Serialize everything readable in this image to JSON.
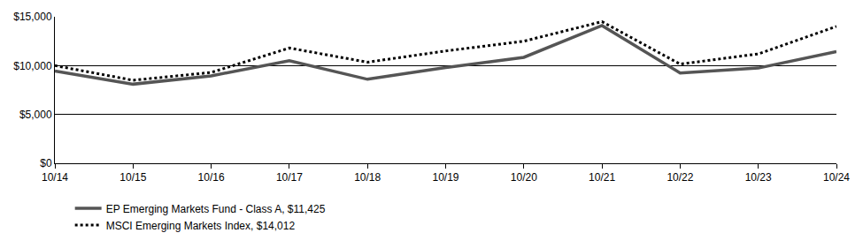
{
  "chart_data": {
    "type": "line",
    "categories": [
      "10/14",
      "10/15",
      "10/16",
      "10/17",
      "10/18",
      "10/19",
      "10/20",
      "10/21",
      "10/22",
      "10/23",
      "10/24"
    ],
    "series": [
      {
        "name": "EP Emerging Markets Fund - Class A, $11,425",
        "color": "#555555",
        "line_style": "solid",
        "values": [
          9450,
          8100,
          8950,
          10500,
          8600,
          9800,
          10850,
          14100,
          9250,
          9750,
          11425
        ]
      },
      {
        "name": "MSCI Emerging Markets Index, $14,012",
        "color": "#000000",
        "line_style": "dotted",
        "values": [
          10000,
          8500,
          9300,
          11800,
          10350,
          11500,
          12500,
          14500,
          10150,
          11200,
          14012
        ]
      }
    ],
    "ylim": [
      0,
      15000
    ],
    "yticks": [
      {
        "value": 0,
        "label": "$0"
      },
      {
        "value": 5000,
        "label": "$5,000"
      },
      {
        "value": 10000,
        "label": "$10,000"
      },
      {
        "value": 15000,
        "label": "$15,000"
      }
    ],
    "grid": true,
    "legend": "bottom"
  }
}
